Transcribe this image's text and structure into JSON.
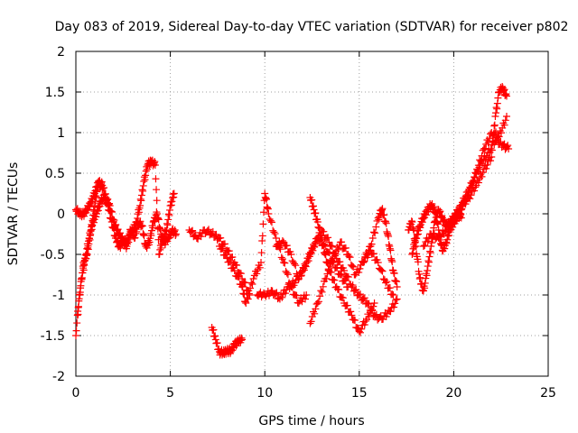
{
  "chart_data": {
    "type": "scatter",
    "title": "Day 083 of 2019, Sidereal Day-to-day VTEC variation (SDTVAR) for receiver p802",
    "xlabel": "GPS time / hours",
    "ylabel": "SDTVAR / TECUs",
    "xlim": [
      0,
      25
    ],
    "ylim": [
      -2,
      2
    ],
    "xticks": [
      0,
      5,
      10,
      15,
      20,
      25
    ],
    "yticks": [
      -2,
      -1.5,
      -1,
      -0.5,
      0,
      0.5,
      1,
      1.5,
      2
    ],
    "grid": true,
    "marker": "+",
    "color": "#ff0000",
    "series": [
      {
        "name": "SDTVAR",
        "segments": [
          {
            "x": [
              0.0,
              0.2,
              0.4,
              0.6,
              0.8,
              1.0,
              1.2,
              1.4,
              1.6,
              1.8,
              2.0,
              2.2,
              2.4,
              2.6,
              2.8,
              3.0,
              3.2,
              3.4,
              3.6,
              3.8,
              4.0,
              4.2,
              4.4,
              4.6,
              4.8,
              5.0,
              5.2
            ],
            "y": [
              -1.5,
              -1.0,
              -0.6,
              -0.5,
              -0.2,
              0.1,
              0.4,
              0.35,
              0.2,
              0.1,
              -0.1,
              -0.2,
              -0.3,
              -0.35,
              -0.3,
              -0.2,
              -0.1,
              0.1,
              0.4,
              0.6,
              0.65,
              0.6,
              -0.5,
              -0.3,
              -0.2,
              0.1,
              0.25
            ]
          },
          {
            "x": [
              0.1,
              0.3,
              0.5,
              0.7,
              0.9,
              1.1,
              1.3,
              1.5,
              1.7,
              1.9,
              2.1,
              2.3,
              2.5,
              2.7,
              2.9,
              3.1,
              3.3,
              3.5,
              3.7,
              3.9,
              4.1,
              4.3,
              4.5,
              4.7,
              4.9,
              5.1,
              5.3
            ],
            "y": [
              -1.2,
              -0.8,
              -0.55,
              -0.3,
              -0.1,
              0.0,
              0.15,
              0.2,
              0.1,
              -0.1,
              -0.3,
              -0.4,
              -0.35,
              -0.4,
              -0.2,
              -0.3,
              -0.1,
              -0.15,
              -0.4,
              -0.35,
              -0.1,
              0.0,
              -0.25,
              -0.35,
              -0.3,
              -0.2,
              -0.25
            ]
          },
          {
            "x": [
              0.0,
              0.2,
              0.4,
              0.6,
              0.8,
              1.0,
              1.2,
              1.4
            ],
            "y": [
              0.05,
              0.0,
              0.0,
              0.05,
              0.15,
              0.25,
              0.4,
              0.3
            ]
          },
          {
            "x": [
              6.0,
              6.4,
              6.8,
              7.2,
              7.6,
              8.0,
              8.4,
              8.8,
              9.2
            ],
            "y": [
              -0.2,
              -0.3,
              -0.2,
              -0.25,
              -0.3,
              -0.45,
              -0.6,
              -0.8,
              -1.0
            ]
          },
          {
            "x": [
              7.2,
              7.4,
              7.6,
              7.8,
              8.0,
              8.2,
              8.4,
              8.6,
              8.8
            ],
            "y": [
              -1.4,
              -1.55,
              -1.7,
              -1.72,
              -1.68,
              -1.7,
              -1.6,
              -1.58,
              -1.55
            ]
          },
          {
            "x": [
              7.6,
              8.0,
              8.4,
              8.8,
              9.0,
              9.4,
              9.8,
              10.0,
              10.2,
              10.6,
              11.0,
              11.4,
              11.8,
              12.2
            ],
            "y": [
              -0.4,
              -0.55,
              -0.7,
              -0.9,
              -1.1,
              -0.8,
              -0.6,
              0.25,
              0.0,
              -0.3,
              -0.6,
              -0.9,
              -1.1,
              -1.0
            ]
          },
          {
            "x": [
              9.6,
              10.0,
              10.4,
              10.8,
              11.2,
              11.6,
              12.0,
              12.4,
              12.8,
              13.2,
              13.6,
              14.0,
              14.4
            ],
            "y": [
              -1.0,
              -1.0,
              -0.95,
              -1.05,
              -0.9,
              -0.85,
              -0.7,
              -0.5,
              -0.3,
              -0.4,
              -0.6,
              -0.75,
              -0.9
            ]
          },
          {
            "x": [
              10.6,
              11.0,
              11.4,
              11.8,
              12.2,
              12.6,
              13.0,
              13.4,
              13.8,
              14.2,
              14.6,
              15.0,
              15.4,
              15.8,
              16.2,
              16.6,
              17.0
            ],
            "y": [
              -0.4,
              -0.35,
              -0.5,
              -0.8,
              -0.6,
              -0.4,
              -0.2,
              -0.35,
              -0.55,
              -0.7,
              -0.9,
              -1.0,
              -1.1,
              -1.25,
              -1.3,
              -1.2,
              -1.05
            ]
          },
          {
            "x": [
              12.4,
              12.6,
              12.8,
              13.0,
              13.2,
              13.4,
              13.8,
              14.2,
              14.6,
              15.0,
              15.4,
              15.8
            ],
            "y": [
              0.2,
              0.05,
              -0.1,
              -0.3,
              -0.5,
              -0.7,
              -0.9,
              -1.1,
              -1.25,
              -1.45,
              -1.3,
              -1.1
            ]
          },
          {
            "x": [
              12.4,
              12.8,
              13.2,
              13.6,
              14.0,
              14.4,
              14.8,
              15.2,
              15.6,
              16.0,
              16.4,
              16.8
            ],
            "y": [
              -1.35,
              -1.1,
              -0.8,
              -0.55,
              -0.35,
              -0.5,
              -0.75,
              -0.6,
              -0.45,
              -0.6,
              -0.85,
              -1.0
            ]
          },
          {
            "x": [
              15.2,
              15.6,
              16.0,
              16.2,
              16.4,
              16.6,
              16.8,
              17.0
            ],
            "y": [
              -0.6,
              -0.4,
              -0.05,
              0.05,
              -0.1,
              -0.4,
              -0.7,
              -0.9
            ]
          },
          {
            "x": [
              17.6,
              17.8,
              18.0,
              18.2,
              18.4,
              18.6,
              18.8,
              19.0,
              19.2,
              19.4,
              19.6,
              19.8,
              20.0,
              20.2,
              20.4
            ],
            "y": [
              -0.2,
              -0.1,
              -0.4,
              -0.8,
              -0.95,
              -0.7,
              -0.4,
              -0.1,
              0.05,
              -0.05,
              -0.15,
              -0.1,
              -0.05,
              0.0,
              -0.05
            ]
          },
          {
            "x": [
              17.8,
              18.0,
              18.2,
              18.4,
              18.6,
              18.8,
              19.0,
              19.2,
              19.4,
              19.6,
              19.8,
              20.0,
              20.2,
              20.4
            ],
            "y": [
              -0.5,
              -0.3,
              -0.15,
              -0.05,
              0.05,
              0.1,
              0.05,
              -0.2,
              -0.45,
              -0.35,
              -0.2,
              -0.1,
              -0.05,
              0.05
            ]
          },
          {
            "x": [
              18.4,
              18.8,
              19.2,
              19.6,
              20.0,
              20.4,
              20.8,
              21.2,
              21.6,
              22.0,
              22.4,
              22.8
            ],
            "y": [
              -0.4,
              -0.25,
              -0.3,
              -0.2,
              -0.1,
              0.1,
              0.3,
              0.5,
              0.8,
              1.0,
              0.95,
              1.2
            ]
          },
          {
            "x": [
              20.0,
              20.4,
              20.8,
              21.2,
              21.6,
              22.0,
              22.2,
              22.4,
              22.6,
              22.8
            ],
            "y": [
              -0.05,
              0.1,
              0.2,
              0.35,
              0.55,
              0.7,
              1.2,
              1.5,
              1.55,
              1.45
            ]
          },
          {
            "x": [
              20.2,
              20.6,
              21.0,
              21.4,
              21.8,
              22.2,
              22.6,
              22.9
            ],
            "y": [
              0.0,
              0.15,
              0.4,
              0.6,
              0.75,
              0.9,
              0.85,
              0.8
            ]
          }
        ]
      }
    ]
  }
}
